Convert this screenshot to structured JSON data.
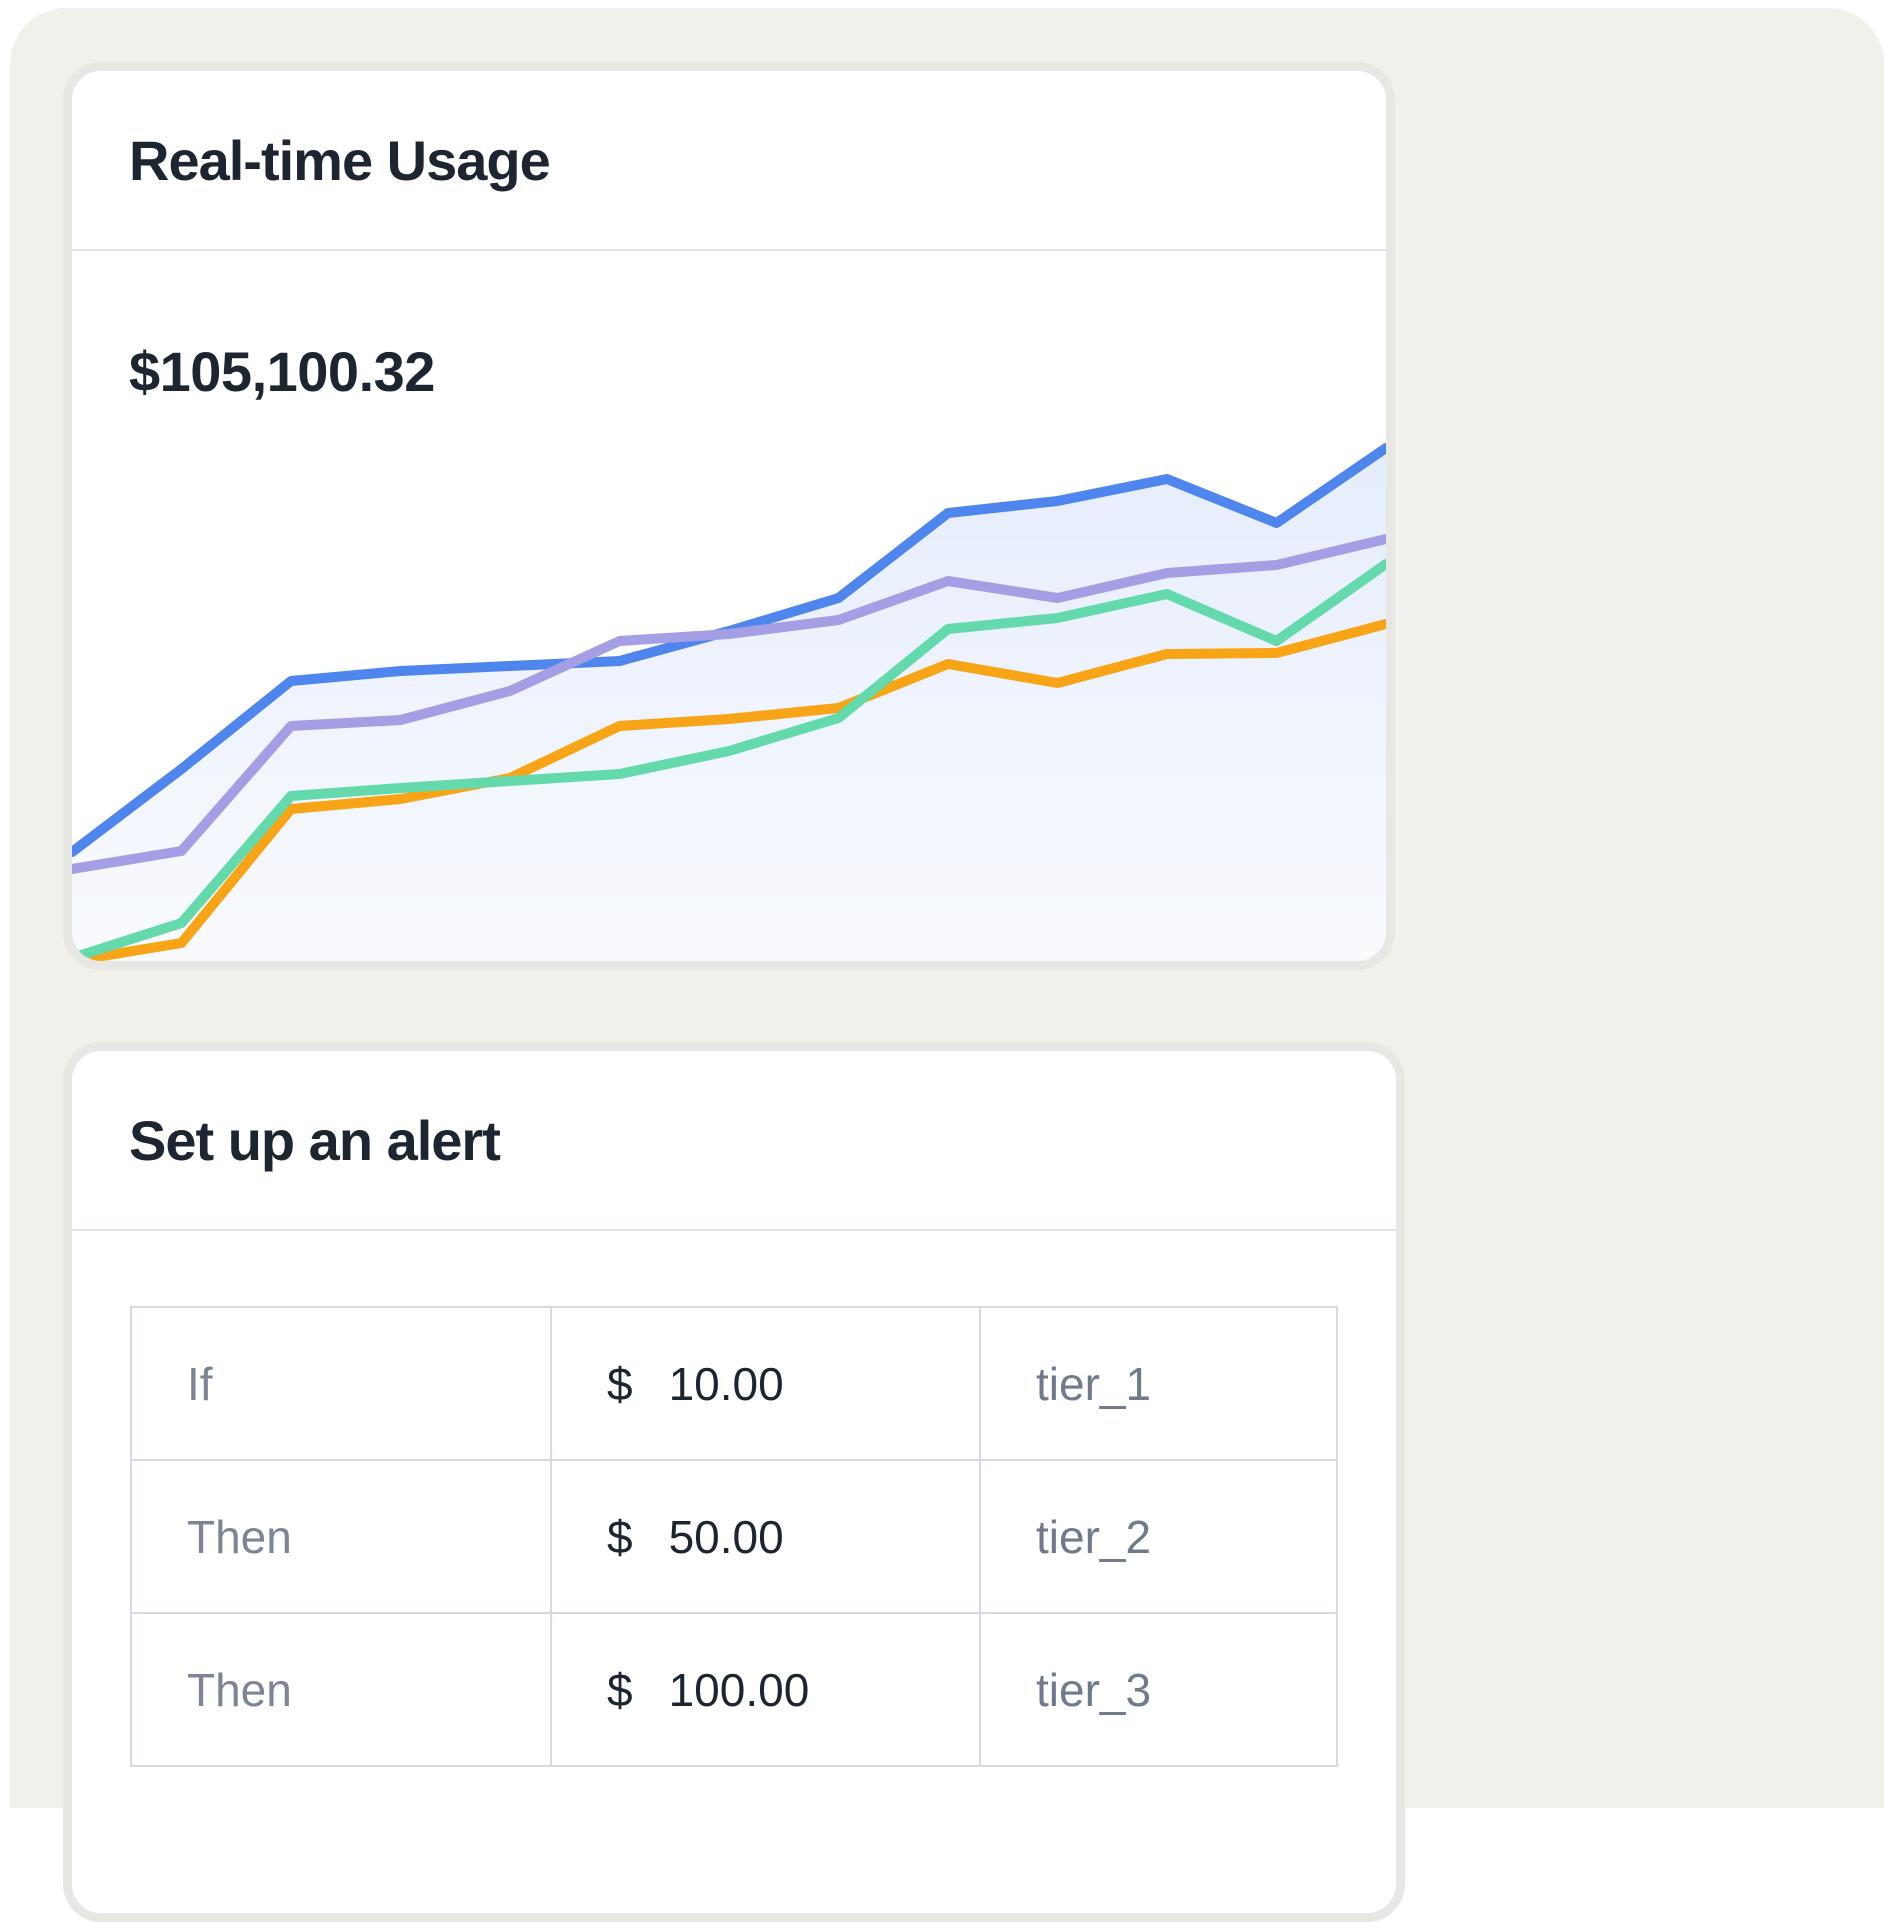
{
  "colors": {
    "accent_blue": "#4e86ee",
    "lavender": "#a49fe4",
    "mint": "#63d9ac",
    "orange": "#f7a416",
    "fill_top": "rgba(94,140,233,0.16)",
    "fill_bottom": "rgba(94,140,233,0.04)",
    "title": "#1d2531",
    "muted": "#7b8596",
    "tier": "#6f7b8d",
    "divider": "#dde3ec",
    "table_border": "#d3dae5",
    "card_ring": "#e7e7e4",
    "panel": "#f1f0ea"
  },
  "usage_card": {
    "title": "Real-time Usage",
    "amount": "$105,100.32",
    "chart_data": {
      "type": "area",
      "title": "Real-time Usage",
      "xlabel": "",
      "ylabel": "",
      "x_labels_visible": false,
      "y_axis_visible": false,
      "grid": false,
      "legend": "none",
      "ylim": [
        0,
        600
      ],
      "x_points": 13,
      "series": [
        {
          "name": "blue",
          "color": "#4e86ee",
          "filled": true,
          "values": [
            109,
            192,
            280,
            290,
            295,
            300,
            330,
            363,
            448,
            460,
            482,
            438,
            513
          ]
        },
        {
          "name": "purple",
          "color": "#a49fe4",
          "filled": false,
          "values": [
            92,
            110,
            235,
            241,
            270,
            320,
            327,
            341,
            380,
            363,
            388,
            396,
            422
          ]
        },
        {
          "name": "orange",
          "color": "#f7a416",
          "filled": false,
          "values": [
            0,
            18,
            152,
            162,
            183,
            235,
            242,
            253,
            297,
            278,
            307,
            308,
            337
          ]
        },
        {
          "name": "green",
          "color": "#63d9ac",
          "filled": false,
          "values": [
            3,
            38,
            165,
            173,
            180,
            187,
            210,
            243,
            332,
            343,
            367,
            320,
            397
          ]
        }
      ]
    }
  },
  "alert_card": {
    "title": "Set up an alert",
    "table": {
      "rows": [
        {
          "condition": "If",
          "currency": "$",
          "amount": "10.00",
          "tier": "tier_1"
        },
        {
          "condition": "Then",
          "currency": "$",
          "amount": "50.00",
          "tier": "tier_2"
        },
        {
          "condition": "Then",
          "currency": "$",
          "amount": "100.00",
          "tier": "tier_3"
        }
      ]
    }
  }
}
